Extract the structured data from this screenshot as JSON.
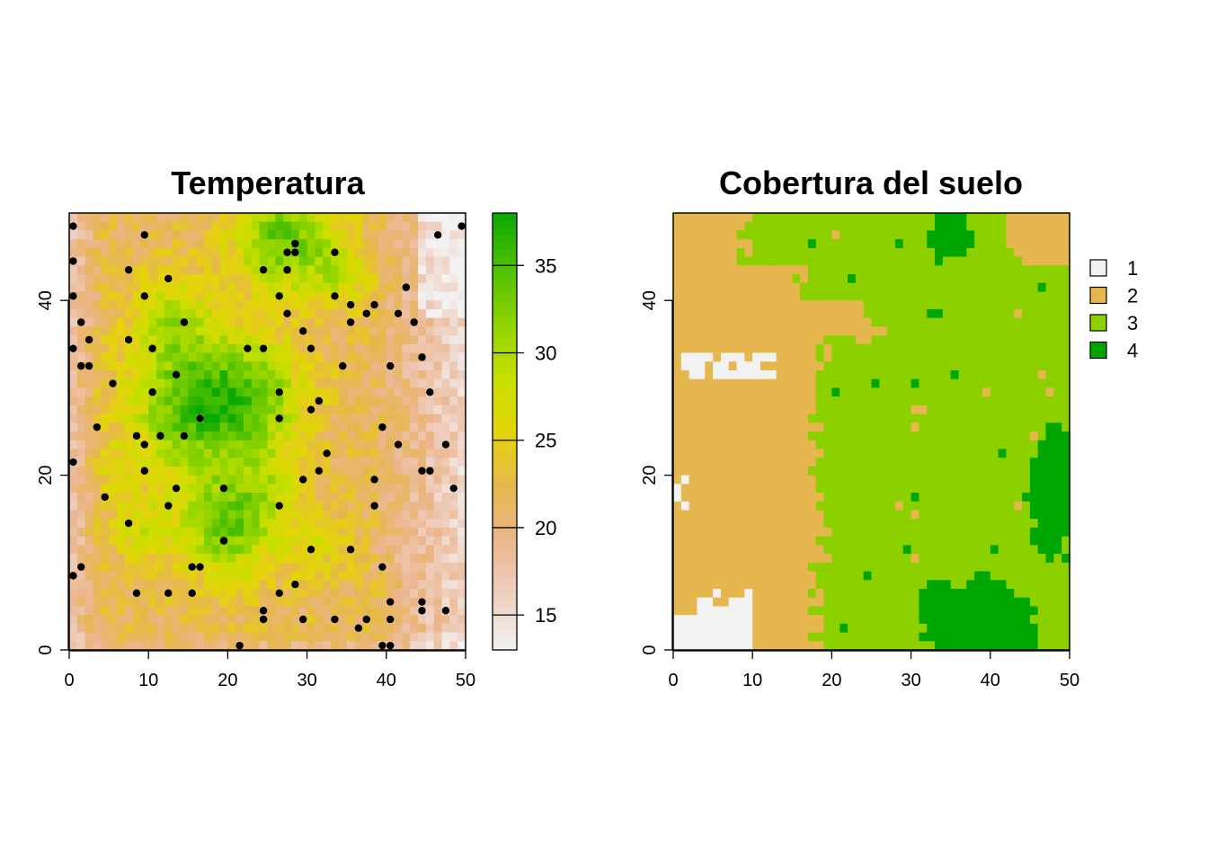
{
  "chart_data": [
    {
      "type": "heatmap",
      "title": "Temperatura",
      "xlim": [
        0,
        50
      ],
      "ylim": [
        0,
        50
      ],
      "x_ticks": [
        0,
        10,
        20,
        30,
        40,
        50
      ],
      "y_ticks": [
        0,
        20,
        40
      ],
      "grid_size": [
        50,
        50
      ],
      "colorbar": {
        "range": [
          13,
          38
        ],
        "ticks": [
          15,
          20,
          25,
          30,
          35
        ],
        "colors": [
          "#F2F2F2",
          "#EFCFC0",
          "#EBB68D",
          "#E6B74E",
          "#E5D40A",
          "#C7DF00",
          "#8DD300",
          "#4EC000",
          "#0AA800"
        ]
      },
      "points": [
        [
          0.5,
          48.5
        ],
        [
          0.5,
          44.5
        ],
        [
          0.5,
          40.5
        ],
        [
          0.5,
          34.5
        ],
        [
          0.5,
          21.5
        ],
        [
          0.5,
          8.5
        ],
        [
          1.5,
          37.5
        ],
        [
          1.5,
          32.5
        ],
        [
          1.5,
          9.5
        ],
        [
          2.5,
          35.5
        ],
        [
          2.5,
          32.5
        ],
        [
          3.5,
          25.5
        ],
        [
          4.5,
          17.5
        ],
        [
          5.5,
          30.5
        ],
        [
          7.5,
          43.5
        ],
        [
          7.5,
          35.5
        ],
        [
          7.5,
          14.5
        ],
        [
          8.5,
          24.5
        ],
        [
          8.5,
          6.5
        ],
        [
          9.5,
          47.5
        ],
        [
          9.5,
          40.5
        ],
        [
          9.5,
          23.5
        ],
        [
          9.5,
          20.5
        ],
        [
          10.5,
          34.5
        ],
        [
          10.5,
          29.5
        ],
        [
          11.5,
          24.5
        ],
        [
          12.5,
          42.5
        ],
        [
          12.5,
          16.5
        ],
        [
          12.5,
          6.5
        ],
        [
          13.5,
          31.5
        ],
        [
          13.5,
          18.5
        ],
        [
          14.5,
          37.5
        ],
        [
          14.5,
          24.5
        ],
        [
          15.5,
          9.5
        ],
        [
          15.5,
          6.5
        ],
        [
          16.5,
          26.5
        ],
        [
          16.5,
          9.5
        ],
        [
          19.5,
          18.5
        ],
        [
          19.5,
          12.5
        ],
        [
          21.5,
          0.5
        ],
        [
          22.5,
          34.5
        ],
        [
          24.5,
          43.5
        ],
        [
          24.5,
          34.5
        ],
        [
          24.5,
          4.5
        ],
        [
          24.5,
          3.5
        ],
        [
          26.5,
          40.5
        ],
        [
          26.5,
          29.5
        ],
        [
          26.5,
          26.5
        ],
        [
          26.5,
          16.5
        ],
        [
          26.5,
          6.5
        ],
        [
          27.5,
          45.5
        ],
        [
          27.5,
          43.5
        ],
        [
          27.5,
          38.5
        ],
        [
          28.5,
          46.5
        ],
        [
          28.5,
          45.5
        ],
        [
          28.5,
          7.5
        ],
        [
          29.5,
          36.5
        ],
        [
          29.5,
          19.5
        ],
        [
          29.5,
          3.5
        ],
        [
          30.5,
          34.5
        ],
        [
          30.5,
          27.5
        ],
        [
          30.5,
          11.5
        ],
        [
          31.5,
          28.5
        ],
        [
          31.5,
          20.5
        ],
        [
          32.5,
          22.5
        ],
        [
          33.5,
          45.5
        ],
        [
          33.5,
          40.5
        ],
        [
          33.5,
          3.5
        ],
        [
          34.5,
          32.5
        ],
        [
          35.5,
          39.5
        ],
        [
          35.5,
          37.5
        ],
        [
          35.5,
          11.5
        ],
        [
          36.5,
          2.5
        ],
        [
          37.5,
          38.5
        ],
        [
          37.5,
          3.5
        ],
        [
          38.5,
          39.5
        ],
        [
          38.5,
          19.5
        ],
        [
          38.5,
          16.5
        ],
        [
          39.5,
          25.5
        ],
        [
          39.5,
          9.5
        ],
        [
          39.5,
          0.5
        ],
        [
          40.5,
          32.5
        ],
        [
          40.5,
          5.5
        ],
        [
          40.5,
          3.5
        ],
        [
          40.5,
          0.5
        ],
        [
          41.5,
          38.5
        ],
        [
          41.5,
          23.5
        ],
        [
          42.5,
          41.5
        ],
        [
          43.5,
          37.5
        ],
        [
          44.5,
          33.5
        ],
        [
          44.5,
          20.5
        ],
        [
          44.5,
          5.5
        ],
        [
          44.5,
          4.5
        ],
        [
          45.5,
          29.5
        ],
        [
          45.5,
          20.5
        ],
        [
          46.5,
          47.5
        ],
        [
          47.5,
          23.5
        ],
        [
          47.5,
          4.5
        ],
        [
          48.5,
          18.5
        ],
        [
          49.5,
          48.5
        ]
      ]
    },
    {
      "type": "heatmap",
      "title": "Cobertura del suelo",
      "xlim": [
        0,
        50
      ],
      "ylim": [
        0,
        50
      ],
      "x_ticks": [
        0,
        10,
        20,
        30,
        40,
        50
      ],
      "y_ticks": [
        0,
        20,
        40
      ],
      "grid_size": [
        50,
        50
      ],
      "legend": [
        {
          "label": "1",
          "color": "#F2F2F2"
        },
        {
          "label": "2",
          "color": "#E6B64F"
        },
        {
          "label": "3",
          "color": "#8CD000"
        },
        {
          "label": "4",
          "color": "#00A600"
        }
      ],
      "legend_position": "right"
    }
  ]
}
